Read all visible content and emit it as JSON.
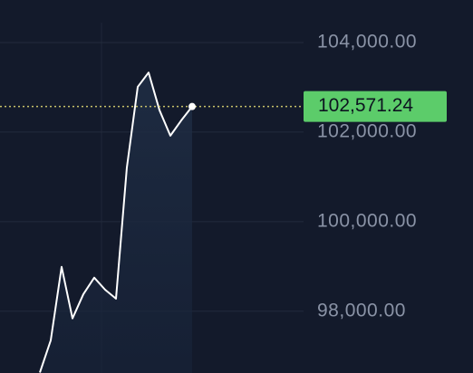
{
  "chart_data": {
    "type": "line",
    "categories": [
      null,
      null,
      null,
      null,
      null,
      null,
      null,
      null,
      null,
      null,
      null,
      null,
      null,
      null,
      null
    ],
    "series": [
      {
        "color": "#ffffff",
        "values": [
          96630,
          97350,
          98990,
          97840,
          98380,
          98750,
          98480,
          98280,
          101210,
          103010,
          103330,
          102490,
          101920,
          102260,
          102571.24
        ],
        "value_labels": [
          null,
          null,
          null,
          null,
          null,
          null,
          null,
          null,
          null,
          null,
          null,
          null,
          null,
          null,
          "102,571.24"
        ]
      }
    ],
    "ylim": [
      96620,
      104950
    ],
    "yticks": [
      {
        "value": 98000,
        "label": "98,000.00"
      },
      {
        "value": 100000,
        "label": "100,000.00"
      },
      {
        "value": 102000,
        "label": "102,000.00"
      },
      {
        "value": 104000,
        "label": "104,000.00"
      }
    ],
    "grid": true,
    "last_value_color": "#5ccc6a"
  }
}
